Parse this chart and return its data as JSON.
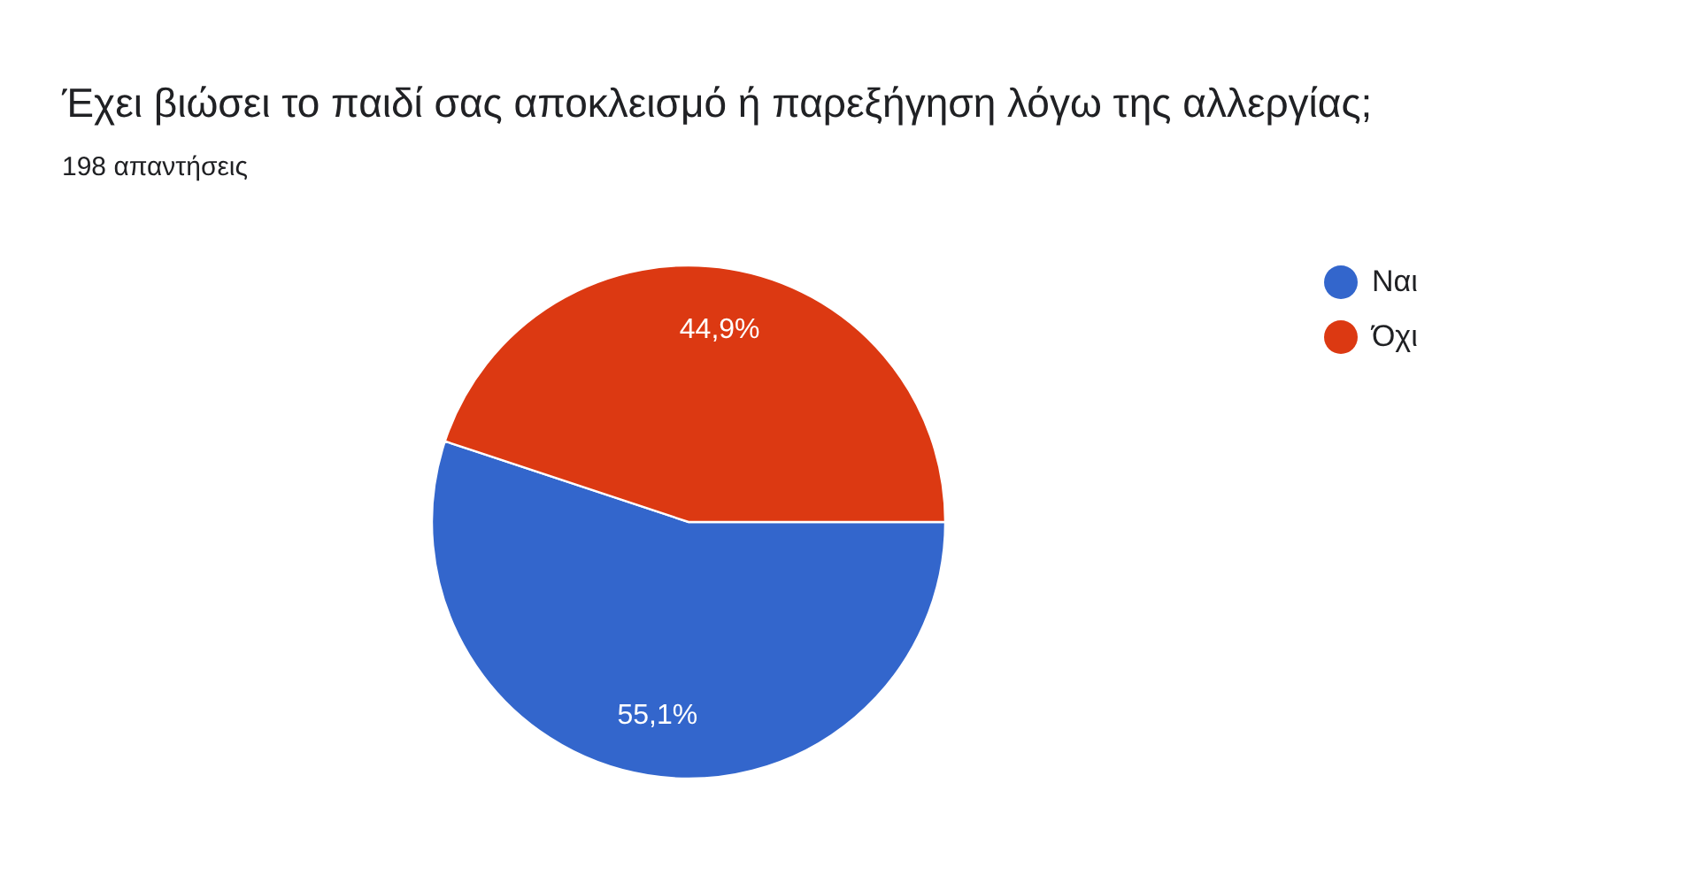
{
  "chart_data": {
    "type": "pie",
    "title": "Έχει βιώσει το παιδί σας αποκλεισμό ή παρεξήγηση λόγω της αλλεργίας;",
    "subtitle": "198 απαντήσεις",
    "categories": [
      "Ναι",
      "Όχι"
    ],
    "values": [
      55.1,
      44.9
    ],
    "colors": [
      "#3366cc",
      "#dc3912"
    ],
    "value_labels": [
      "55,1%",
      "44,9%"
    ],
    "legend": "right"
  }
}
